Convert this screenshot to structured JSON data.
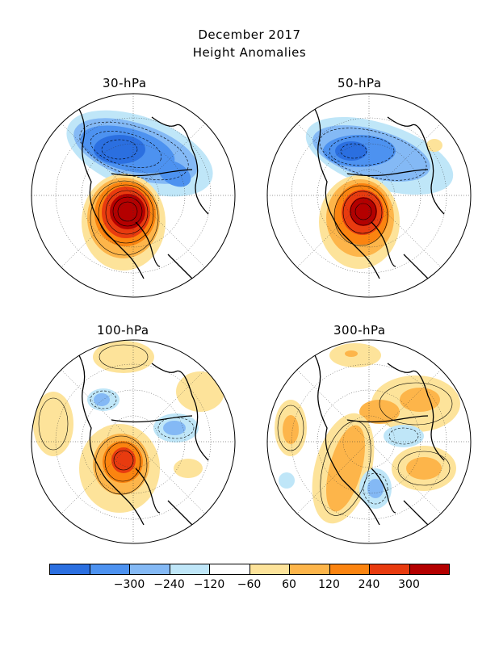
{
  "title": {
    "line1": "December 2017",
    "line2": "Height Anomalies"
  },
  "panels": [
    {
      "label": "30-hPa"
    },
    {
      "label": "50-hPa"
    },
    {
      "label": "100-hPa"
    },
    {
      "label": "300-hPa"
    }
  ],
  "colorbar": {
    "colors": [
      "#2b6fe0",
      "#4d92f0",
      "#84b9f5",
      "#bfe6f8",
      "#ffffff",
      "#fde39a",
      "#fdb54a",
      "#fb8410",
      "#e83b0f",
      "#b40000"
    ],
    "labels": [
      "-300",
      "-240",
      "-120",
      "-60",
      "60",
      "120",
      "240",
      "300"
    ]
  }
}
